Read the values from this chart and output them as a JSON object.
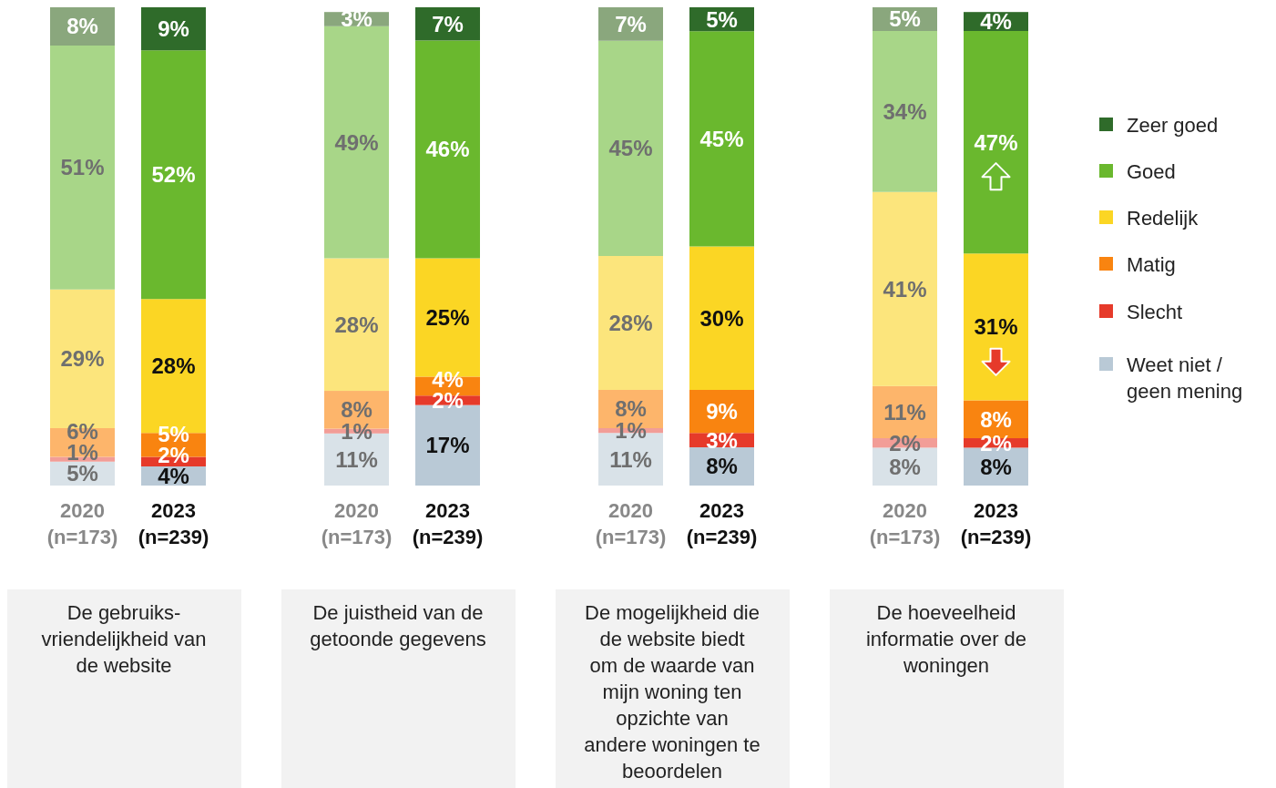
{
  "chart_data": [
    {
      "type": "bar",
      "stacked": true,
      "data_labels": true,
      "ylim": [
        0,
        100
      ],
      "categories": [
        "2020\n(n=173)",
        "2023\n(n=239)"
      ],
      "xlabel": "De gebruiks-\nvriendelijkheid van\nde website",
      "series": [
        {
          "colors": [
            "#d9e2e8",
            "#b9c9d6"
          ],
          "values": [
            5,
            4
          ],
          "value_labels": [
            "5%",
            "4%"
          ]
        },
        {
          "colors": [
            "#f29d97",
            "#e63a2a"
          ],
          "values": [
            1,
            2
          ],
          "value_labels": [
            "1%",
            "2%"
          ]
        },
        {
          "colors": [
            "#fdb56b",
            "#f98410"
          ],
          "values": [
            6,
            5
          ],
          "value_labels": [
            "6%",
            "5%"
          ]
        },
        {
          "colors": [
            "#fce57c",
            "#fbd624"
          ],
          "values": [
            29,
            28
          ],
          "value_labels": [
            "29%",
            "28%"
          ]
        },
        {
          "colors": [
            "#a8d688",
            "#6ab82e"
          ],
          "values": [
            51,
            52
          ],
          "value_labels": [
            "51%",
            "52%"
          ]
        },
        {
          "colors": [
            "#8aa77d",
            "#2f6b2a"
          ],
          "values": [
            8,
            9
          ],
          "value_labels": [
            "8%",
            "9%"
          ]
        }
      ]
    },
    {
      "type": "bar",
      "stacked": true,
      "data_labels": true,
      "ylim": [
        0,
        101
      ],
      "categories": [
        "2020\n(n=173)",
        "2023\n(n=239)"
      ],
      "xlabel": "De juistheid van de\ngetoonde gegevens",
      "series": [
        {
          "colors": [
            "#d9e2e8",
            "#b9c9d6"
          ],
          "values": [
            11,
            17
          ],
          "value_labels": [
            "11%",
            "17%"
          ]
        },
        {
          "colors": [
            "#f29d97",
            "#e63a2a"
          ],
          "values": [
            1,
            2
          ],
          "value_labels": [
            "1%",
            "2%"
          ]
        },
        {
          "colors": [
            "#fdb56b",
            "#f98410"
          ],
          "values": [
            8,
            4
          ],
          "value_labels": [
            "8%",
            "4%"
          ]
        },
        {
          "colors": [
            "#fce57c",
            "#fbd624"
          ],
          "values": [
            28,
            25
          ],
          "value_labels": [
            "28%",
            "25%"
          ]
        },
        {
          "colors": [
            "#a8d688",
            "#6ab82e"
          ],
          "values": [
            49,
            46
          ],
          "value_labels": [
            "49%",
            "46%"
          ]
        },
        {
          "colors": [
            "#8aa77d",
            "#2f6b2a"
          ],
          "values": [
            3,
            7
          ],
          "value_labels": [
            "3%",
            "7%"
          ]
        }
      ]
    },
    {
      "type": "bar",
      "stacked": true,
      "data_labels": true,
      "ylim": [
        0,
        100
      ],
      "categories": [
        "2020\n(n=173)",
        "2023\n(n=239)"
      ],
      "xlabel": "De mogelijkheid die\nde website biedt\nom de waarde van\nmijn woning ten\nopzichte van\nandere woningen te\nbeoordelen",
      "series": [
        {
          "colors": [
            "#d9e2e8",
            "#b9c9d6"
          ],
          "values": [
            11,
            8
          ],
          "value_labels": [
            "11%",
            "8%"
          ]
        },
        {
          "colors": [
            "#f29d97",
            "#e63a2a"
          ],
          "values": [
            1,
            3
          ],
          "value_labels": [
            "1%",
            "3%"
          ]
        },
        {
          "colors": [
            "#fdb56b",
            "#f98410"
          ],
          "values": [
            8,
            9
          ],
          "value_labels": [
            "8%",
            "9%"
          ]
        },
        {
          "colors": [
            "#fce57c",
            "#fbd624"
          ],
          "values": [
            28,
            30
          ],
          "value_labels": [
            "28%",
            "30%"
          ]
        },
        {
          "colors": [
            "#a8d688",
            "#6ab82e"
          ],
          "values": [
            45,
            45
          ],
          "value_labels": [
            "45%",
            "45%"
          ]
        },
        {
          "colors": [
            "#8aa77d",
            "#2f6b2a"
          ],
          "values": [
            7,
            5
          ],
          "value_labels": [
            "7%",
            "5%"
          ]
        }
      ]
    },
    {
      "type": "bar",
      "stacked": true,
      "data_labels": true,
      "ylim": [
        0,
        101
      ],
      "legend": "right",
      "categories": [
        "2020\n(n=173)",
        "2023\n(n=239)"
      ],
      "xlabel": "De hoeveelheid\ninformatie over de\nwoningen",
      "series": [
        {
          "name": "Weet niet /\ngeen mening",
          "color": "#b9c9d6",
          "colors": [
            "#d9e2e8",
            "#b9c9d6"
          ],
          "values": [
            8,
            8
          ],
          "value_labels": [
            "8%",
            "8%"
          ]
        },
        {
          "name": "Slecht",
          "color": "#e63a2a",
          "colors": [
            "#f29d97",
            "#e63a2a"
          ],
          "values": [
            2,
            2
          ],
          "value_labels": [
            "2%",
            "2%"
          ]
        },
        {
          "name": "Matig",
          "color": "#f98410",
          "colors": [
            "#fdb56b",
            "#f98410"
          ],
          "values": [
            11,
            8
          ],
          "value_labels": [
            "11%",
            "8%"
          ]
        },
        {
          "name": "Redelijk",
          "color": "#fbd624",
          "colors": [
            "#fce57c",
            "#fbd624"
          ],
          "values": [
            41,
            31
          ],
          "value_labels": [
            "41%",
            "31%"
          ]
        },
        {
          "name": "Goed",
          "color": "#6ab82e",
          "colors": [
            "#a8d688",
            "#6ab82e"
          ],
          "values": [
            34,
            47
          ],
          "value_labels": [
            "34%",
            "47%"
          ]
        },
        {
          "name": "Zeer goed",
          "color": "#2f6b2a",
          "colors": [
            "#8aa77d",
            "#2f6b2a"
          ],
          "values": [
            5,
            4
          ],
          "value_labels": [
            "5%",
            "4%"
          ]
        }
      ]
    }
  ]
}
